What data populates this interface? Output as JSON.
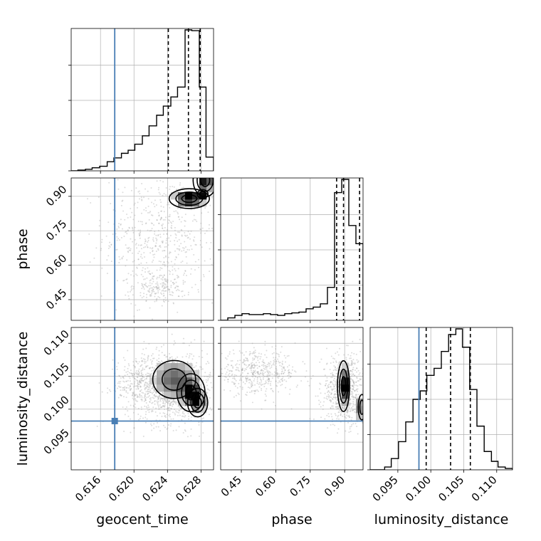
{
  "chart_data": {
    "type": "corner",
    "parameters": [
      "geocent_time",
      "phase",
      "luminosity_distance"
    ],
    "axis_labels": {
      "geocent_time": "geocent_time",
      "phase": "phase",
      "luminosity_distance": "luminosity_distance"
    },
    "ranges": {
      "geocent_time": [
        0.6125,
        0.6295
      ],
      "phase": [
        0.36,
        0.98
      ],
      "luminosity_distance": [
        0.0908,
        0.1124
      ]
    },
    "ticks": {
      "geocent_time": [
        0.616,
        0.62,
        0.624,
        0.628
      ],
      "phase": [
        0.45,
        0.6,
        0.75,
        0.9
      ],
      "luminosity_distance": [
        0.095,
        0.1,
        0.105,
        0.11
      ]
    },
    "tick_labels": {
      "geocent_time": [
        "0.616",
        "0.620",
        "0.624",
        "0.628"
      ],
      "phase": [
        "0.45",
        "0.60",
        "0.75",
        "0.90"
      ],
      "luminosity_distance": [
        "0.095",
        "0.100",
        "0.105",
        "0.110"
      ]
    },
    "truths": {
      "geocent_time": 0.6177,
      "luminosity_distance": 0.0982
    },
    "quantiles": {
      "geocent_time": [
        0.6241,
        0.6265,
        0.6279
      ],
      "phase": [
        0.865,
        0.895,
        0.965
      ],
      "luminosity_distance": [
        0.0993,
        0.103,
        0.106
      ]
    },
    "histograms": {
      "geocent_time": {
        "edges": [
          0.6125,
          0.6133,
          0.6142,
          0.615,
          0.6159,
          0.6168,
          0.6176,
          0.6185,
          0.6193,
          0.6201,
          0.621,
          0.6218,
          0.6227,
          0.6235,
          0.6244,
          0.6252,
          0.6261,
          0.6269,
          0.6278,
          0.6286,
          0.6295
        ],
        "counts": [
          0,
          1,
          2,
          4,
          6,
          12,
          17,
          23,
          27,
          35,
          46,
          59,
          73,
          85,
          97,
          110,
          185,
          184,
          110,
          18
        ]
      },
      "phase": {
        "edges": [
          0.36,
          0.391,
          0.422,
          0.453,
          0.484,
          0.515,
          0.546,
          0.577,
          0.608,
          0.639,
          0.67,
          0.701,
          0.732,
          0.763,
          0.794,
          0.825,
          0.856,
          0.887,
          0.918,
          0.949,
          0.98
        ],
        "counts": [
          0,
          3,
          6,
          8,
          7,
          7,
          8,
          7,
          6,
          8,
          9,
          10,
          14,
          16,
          20,
          40,
          155,
          171,
          115,
          93
        ]
      },
      "luminosity_distance": {
        "edges": [
          0.0908,
          0.0919,
          0.093,
          0.094,
          0.0951,
          0.0962,
          0.0973,
          0.0984,
          0.0994,
          0.1005,
          0.1016,
          0.1027,
          0.1038,
          0.1048,
          0.1059,
          0.107,
          0.1081,
          0.1092,
          0.1102,
          0.1113,
          0.1124
        ],
        "counts": [
          0,
          0,
          2,
          8,
          20,
          34,
          50,
          56,
          67,
          72,
          84,
          96,
          100,
          87,
          57,
          31,
          13,
          6,
          2,
          1
        ]
      }
    },
    "density_2d": [
      {
        "x": "geocent_time",
        "y": "phase",
        "scatter_clusters": [
          {
            "cx": 0.6232,
            "cy": 0.73,
            "sx": 0.0034,
            "sy": 0.14,
            "n": 600
          },
          {
            "cx": 0.623,
            "cy": 0.5,
            "sx": 0.0016,
            "sy": 0.035,
            "n": 180
          }
        ],
        "peaks": [
          {
            "cx": 0.6266,
            "cy": 0.89,
            "sx": 0.001,
            "sy": 0.018,
            "w": 1.0
          },
          {
            "cx": 0.6285,
            "cy": 0.97,
            "sx": 0.0006,
            "sy": 0.03,
            "w": 0.8
          },
          {
            "cx": 0.6282,
            "cy": 0.91,
            "sx": 0.0004,
            "sy": 0.012,
            "w": 0.6
          }
        ]
      },
      {
        "x": "geocent_time",
        "y": "luminosity_distance",
        "scatter_clusters": [
          {
            "cx": 0.6243,
            "cy": 0.1033,
            "sx": 0.0027,
            "sy": 0.0028,
            "n": 1100
          },
          {
            "cx": 0.6215,
            "cy": 0.1045,
            "sx": 0.002,
            "sy": 0.0016,
            "n": 200
          }
        ],
        "peaks": [
          {
            "cx": 0.6268,
            "cy": 0.1025,
            "sx": 0.0007,
            "sy": 0.0012,
            "w": 1.0
          },
          {
            "cx": 0.6276,
            "cy": 0.101,
            "sx": 0.0005,
            "sy": 0.0009,
            "w": 0.8
          },
          {
            "cx": 0.6248,
            "cy": 0.1045,
            "sx": 0.0016,
            "sy": 0.0018,
            "w": 0.7
          }
        ]
      },
      {
        "x": "phase",
        "y": "luminosity_distance",
        "scatter_clusters": [
          {
            "cx": 0.9,
            "cy": 0.103,
            "sx": 0.05,
            "sy": 0.0026,
            "n": 700
          },
          {
            "cx": 0.52,
            "cy": 0.1055,
            "sx": 0.09,
            "sy": 0.0016,
            "n": 500
          }
        ],
        "peaks": [
          {
            "cx": 0.895,
            "cy": 0.1035,
            "sx": 0.011,
            "sy": 0.0016,
            "w": 1.0
          },
          {
            "cx": 0.975,
            "cy": 0.1003,
            "sx": 0.01,
            "sy": 0.0012,
            "w": 0.6
          }
        ]
      }
    ],
    "grid": true,
    "colors": {
      "truth": "#4a7fb5",
      "hist": "#000000",
      "quantile": "#000000",
      "grid": "#b0b0b0",
      "scatter": "#9a9a9a"
    }
  }
}
